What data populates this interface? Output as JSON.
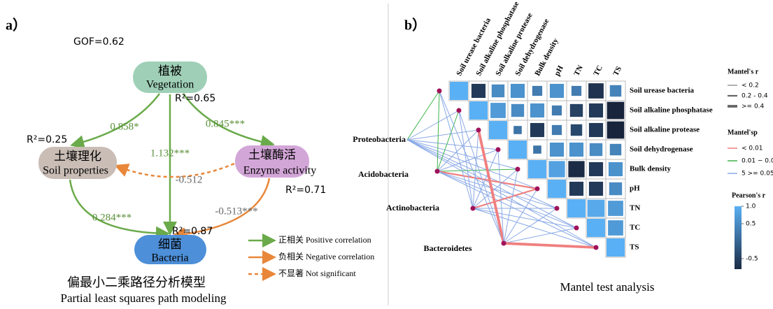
{
  "panel_a": {
    "label": "a）",
    "gof": "GOF=0.62",
    "nodes": [
      {
        "zh": "植被",
        "en": "Vegetation",
        "r2": "R²=0.65"
      },
      {
        "zh": "土壤理化",
        "en": "Soil properties",
        "r2": "R²=0.25"
      },
      {
        "zh": "土壤酶活",
        "en": "Enzyme activity",
        "r2": "R²=0.71"
      },
      {
        "zh": "细菌",
        "en": "Bacteria",
        "r2": "R²=0.87"
      }
    ],
    "paths": [
      {
        "label": "0.858*"
      },
      {
        "label": "0.845***"
      },
      {
        "label": "1.132***"
      },
      {
        "label": "-0.512"
      },
      {
        "label": "0.284***"
      },
      {
        "label": "-0.513***"
      }
    ],
    "legend": [
      "正相关 Positive correlation",
      "负相关 Negative correlation",
      "不显著 Not significant"
    ],
    "title_zh": "偏最小二乘路径分析模型",
    "title_en": "Partial least squares path modeling"
  },
  "chart_data": {
    "type": "heatmap",
    "label": "b）",
    "title": "Mantel test analysis",
    "variables": [
      "Soil urease bacteria",
      "Soil alkaline phosphatase",
      "Soil alkaline protease",
      "Soil dehydrogenase",
      "Bulk density",
      "pH",
      "TN",
      "TC",
      "TS"
    ],
    "matrix": [
      [
        1,
        -0.6,
        0.5,
        0.6,
        0.3,
        0.6,
        0.3,
        -0.7,
        0.4
      ],
      [
        null,
        1,
        0.7,
        0.5,
        0.6,
        0.3,
        -0.5,
        -0.6,
        -0.9
      ],
      [
        null,
        null,
        1,
        0.2,
        -0.6,
        0.3,
        -0.4,
        -0.6,
        -0.9
      ],
      [
        null,
        null,
        null,
        1,
        0.2,
        0.6,
        0.6,
        0.5,
        0.4
      ],
      [
        null,
        null,
        null,
        null,
        1,
        0.8,
        -0.8,
        -0.6,
        0.6
      ],
      [
        null,
        null,
        null,
        null,
        null,
        1,
        -0.6,
        -0.6,
        0.5
      ],
      [
        null,
        null,
        null,
        null,
        null,
        null,
        1,
        0.9,
        0.7
      ],
      [
        null,
        null,
        null,
        null,
        null,
        null,
        null,
        1,
        0.7
      ],
      [
        null,
        null,
        null,
        null,
        null,
        null,
        null,
        null,
        1
      ]
    ],
    "taxa": [
      "Proteobacteria",
      "Acidobacteria",
      "Actinobacteria",
      "Bacteroidetes"
    ],
    "mantel_r": [
      [
        0.1,
        0.1,
        0.1,
        0.1,
        0.1,
        0.1,
        0.1,
        0.1,
        0.1
      ],
      [
        0.15,
        0.15,
        0.1,
        0.1,
        0.15,
        0.3,
        0.1,
        0.1,
        0.1
      ],
      [
        0.1,
        0.1,
        0.1,
        0.1,
        0.1,
        0.3,
        0.1,
        0.1,
        0.1
      ],
      [
        0.1,
        0.1,
        0.45,
        0.1,
        0.1,
        0.1,
        0.1,
        0.1,
        0.45
      ]
    ],
    "mantel_p": [
      [
        0.03,
        0.2,
        0.3,
        0.4,
        0.3,
        0.5,
        0.6,
        0.4,
        0.3
      ],
      [
        0.02,
        0.03,
        0.3,
        0.4,
        0.02,
        0.005,
        0.3,
        0.4,
        0.5
      ],
      [
        0.3,
        0.4,
        0.5,
        0.3,
        0.2,
        0.008,
        0.3,
        0.4,
        0.5
      ],
      [
        0.3,
        0.4,
        0.005,
        0.3,
        0.3,
        0.4,
        0.3,
        0.3,
        0.004
      ]
    ],
    "r_breaks": [
      0.2,
      0.4
    ],
    "p_breaks": [
      0.01,
      0.05
    ],
    "p_colors": [
      "#f07f7f",
      "#3cb44b",
      "#8aa9e6"
    ],
    "mantel_r_legend": {
      "title": "Mantel's r",
      "labels": [
        "< 0.2",
        "0.2 - 0.4",
        ">= 0.4"
      ]
    },
    "mantel_p_legend": {
      "title": "Mantel'sp",
      "labels": [
        "< 0.01",
        "0.01 − 0.0",
        "5 >= 0.05"
      ]
    },
    "colorbar": {
      "title": "Pearson's r",
      "lim": [
        -0.8,
        1
      ],
      "colors": [
        "#1b2b45",
        "#5ab0f4"
      ],
      "ticks": [
        {
          "value": 1,
          "label": "1.0"
        },
        0.5,
        -0.5
      ]
    }
  }
}
